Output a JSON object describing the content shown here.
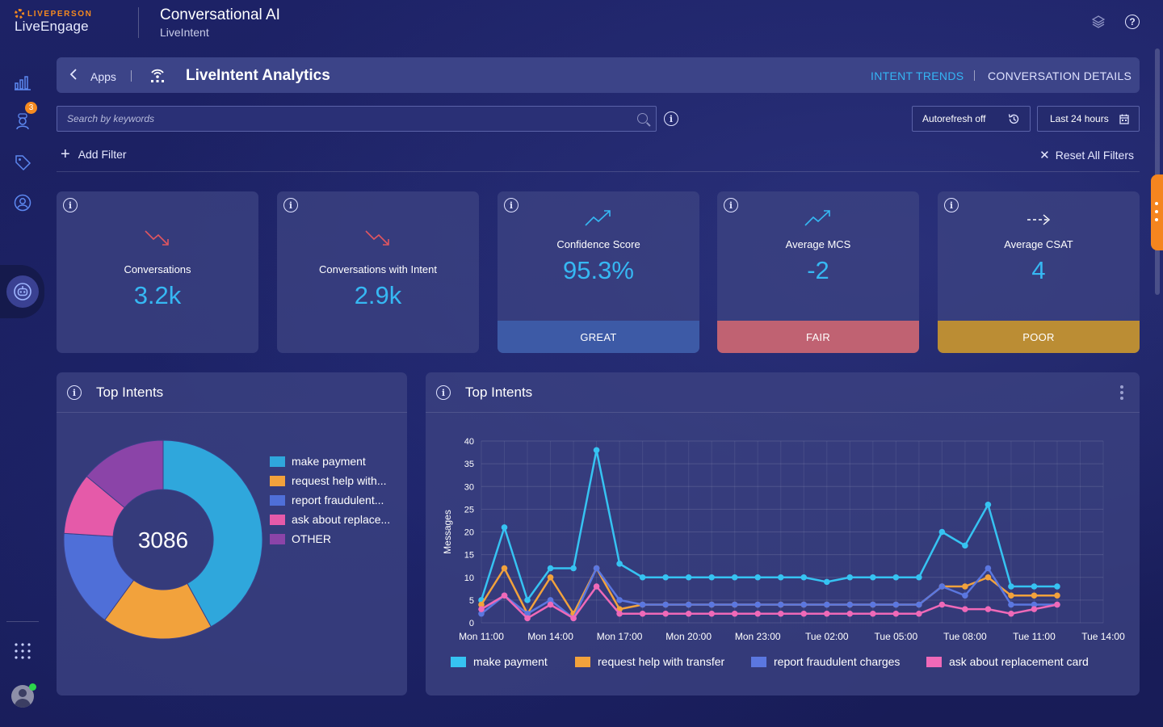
{
  "header": {
    "brand": "LIVEPERSON",
    "product": "LiveEngage",
    "app_title": "Conversational AI",
    "app_subtitle": "LiveIntent"
  },
  "sidebar": {
    "notification_count": "3",
    "items": [
      "analytics-icon",
      "bot-icon",
      "tag-icon",
      "user-circle-icon",
      "ai-bot-icon"
    ]
  },
  "appbar": {
    "back_label": "Apps",
    "title": "LiveIntent Analytics",
    "tabs": [
      {
        "label": "INTENT TRENDS",
        "active": true
      },
      {
        "label": "CONVERSATION DETAILS",
        "active": false
      }
    ]
  },
  "search": {
    "placeholder": "Search by keywords",
    "value": ""
  },
  "autorefresh_label": "Autorefresh off",
  "timerange_label": "Last 24 hours",
  "filters": {
    "add_label": "Add Filter",
    "reset_label": "Reset All Filters"
  },
  "kpis": [
    {
      "label": "Conversations",
      "value": "3.2k",
      "trend": "down",
      "rating": ""
    },
    {
      "label": "Conversations with Intent",
      "value": "2.9k",
      "trend": "down",
      "rating": ""
    },
    {
      "label": "Confidence Score",
      "value": "95.3%",
      "trend": "up",
      "rating": "GREAT",
      "rating_color": "#3d5aa6"
    },
    {
      "label": "Average MCS",
      "value": "-2",
      "trend": "up",
      "rating": "FAIR",
      "rating_color": "#c06272"
    },
    {
      "label": "Average CSAT",
      "value": "4",
      "trend": "flat",
      "rating": "POOR",
      "rating_color": "#bb8d34"
    }
  ],
  "top_intents_pie": {
    "title": "Top Intents",
    "total": "3086",
    "legend": [
      {
        "label": "make payment",
        "color": "#2fa7dc"
      },
      {
        "label": "request help with...",
        "color": "#f2a23c"
      },
      {
        "label": "report fraudulent...",
        "color": "#4f6fd8"
      },
      {
        "label": "ask about replace...",
        "color": "#e55aa9"
      },
      {
        "label": "OTHER",
        "color": "#8b44a8"
      }
    ]
  },
  "top_intents_line": {
    "title": "Top Intents"
  },
  "chart_data": [
    {
      "type": "pie",
      "title": "Top Intents",
      "center_label": "3086",
      "categories": [
        "make payment",
        "request help with...",
        "report fraudulent...",
        "ask about replace...",
        "OTHER"
      ],
      "values": [
        42,
        18,
        16,
        10,
        14
      ],
      "colors": [
        "#2fa7dc",
        "#f2a23c",
        "#4f6fd8",
        "#e55aa9",
        "#8b44a8"
      ]
    },
    {
      "type": "line",
      "title": "Top Intents",
      "ylabel": "Messages",
      "ylim": [
        0,
        40
      ],
      "yticks": [
        0,
        5,
        10,
        15,
        20,
        25,
        30,
        35,
        40
      ],
      "xlim": [
        0,
        27
      ],
      "x_tick_labels": [
        "Mon 11:00",
        "Mon 14:00",
        "Mon 17:00",
        "Mon 20:00",
        "Mon 23:00",
        "Tue 02:00",
        "Tue 05:00",
        "Tue 08:00",
        "Tue 11:00",
        "Tue 14:00"
      ],
      "x_tick_positions": [
        0,
        3,
        6,
        9,
        12,
        15,
        18,
        21,
        24,
        27
      ],
      "series": [
        {
          "name": "make payment",
          "color": "#36c3f2",
          "values": [
            5,
            21,
            5,
            12,
            12,
            38,
            13,
            10,
            10,
            10,
            10,
            10,
            10,
            10,
            10,
            9,
            10,
            10,
            10,
            10,
            20,
            17,
            26,
            8,
            8,
            8
          ]
        },
        {
          "name": "request help with transfer",
          "color": "#f2a23c",
          "values": [
            4,
            12,
            2,
            10,
            2,
            12,
            3,
            4,
            4,
            4,
            4,
            4,
            4,
            4,
            4,
            4,
            4,
            4,
            4,
            4,
            8,
            8,
            10,
            6,
            6,
            6
          ]
        },
        {
          "name": "report fraudulent charges",
          "color": "#5b77e0",
          "values": [
            2,
            6,
            2,
            5,
            1,
            12,
            5,
            4,
            4,
            4,
            4,
            4,
            4,
            4,
            4,
            4,
            4,
            4,
            4,
            4,
            8,
            6,
            12,
            4,
            4,
            4
          ]
        },
        {
          "name": "ask about replacement card",
          "color": "#ef69b8",
          "values": [
            3,
            6,
            1,
            4,
            1,
            8,
            2,
            2,
            2,
            2,
            2,
            2,
            2,
            2,
            2,
            2,
            2,
            2,
            2,
            2,
            4,
            3,
            3,
            2,
            3,
            4
          ]
        }
      ]
    }
  ]
}
